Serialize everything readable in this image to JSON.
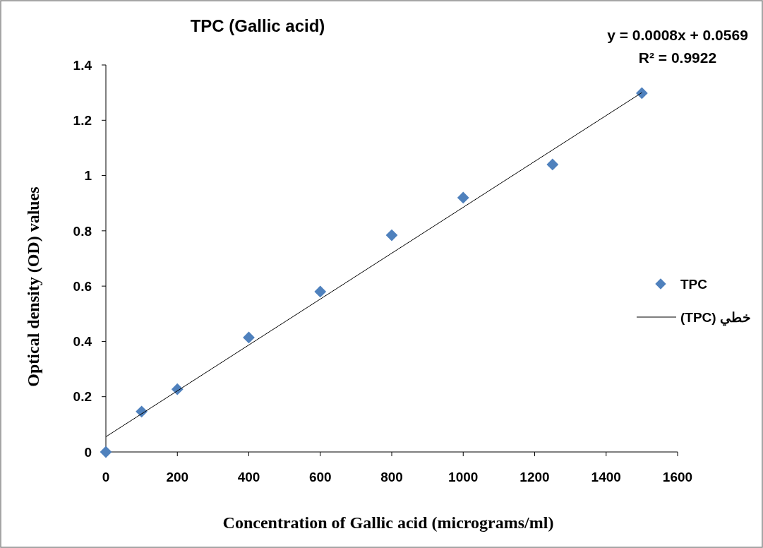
{
  "chart_data": {
    "type": "scatter",
    "title": "TPC (Gallic acid)",
    "xlabel": "Concentration of Gallic acid (micrograms/ml)",
    "ylabel": "Optical density (OD) values",
    "annotations": [
      "y = 0.0008x + 0.0569",
      "R² = 0.9922"
    ],
    "x": [
      0,
      100,
      200,
      400,
      600,
      800,
      1000,
      1250,
      1500
    ],
    "series": [
      {
        "name": "TPC",
        "color": "#4f81bd",
        "marker": "diamond",
        "values": [
          0,
          0.146,
          0.227,
          0.414,
          0.58,
          0.784,
          0.92,
          1.04,
          1.298
        ]
      },
      {
        "name": "خطي (TPC)",
        "type": "line",
        "color": "#000000",
        "x": [
          0,
          1500
        ],
        "values": [
          0.055,
          1.3
        ]
      }
    ],
    "xlim": [
      0,
      1600
    ],
    "xticks": [
      0,
      200,
      400,
      600,
      800,
      1000,
      1200,
      1400,
      1600
    ],
    "ylim": [
      0,
      1.4
    ],
    "yticks": [
      0,
      0.2,
      0.4,
      0.6,
      0.8,
      1,
      1.2,
      1.4
    ],
    "grid": false,
    "legend": "right"
  }
}
